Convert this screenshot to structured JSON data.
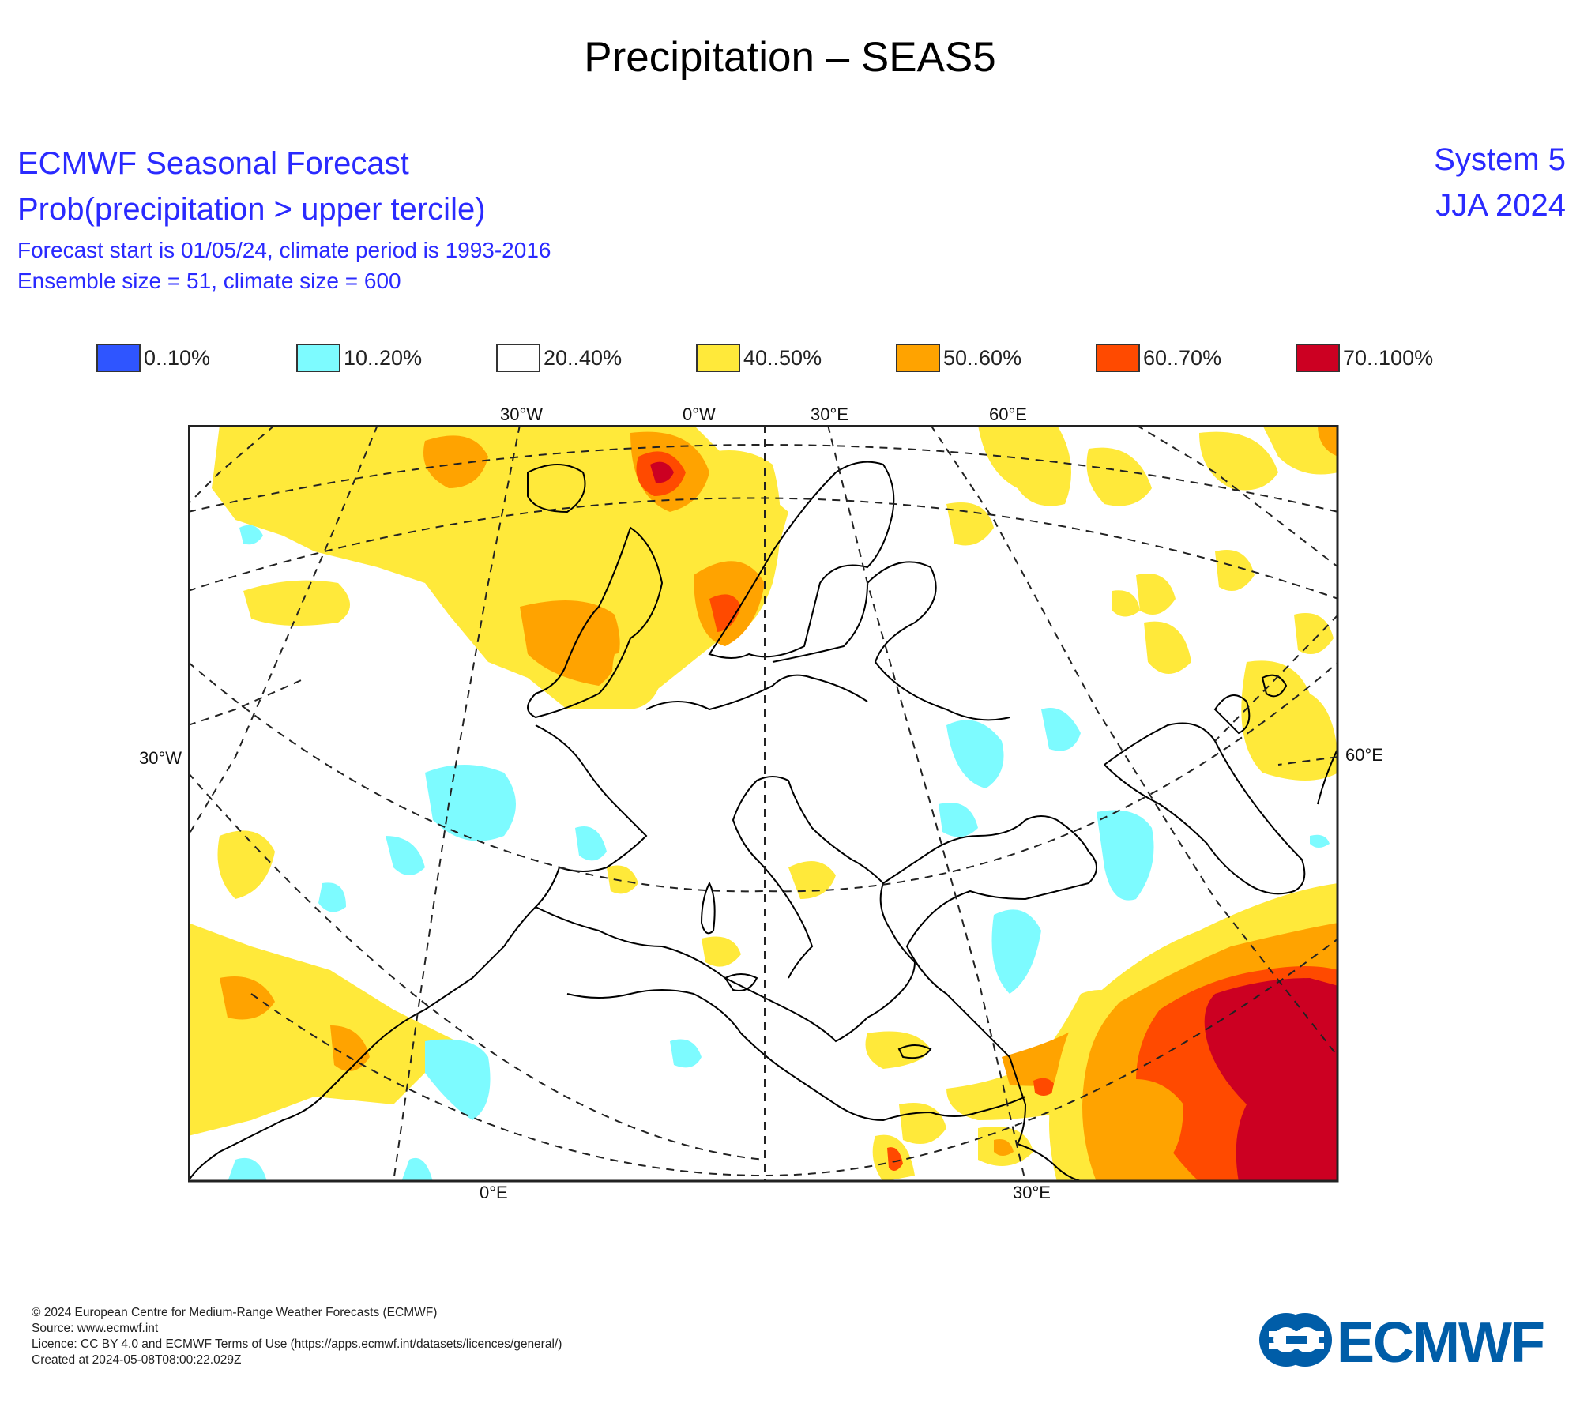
{
  "title": "Precipitation – SEAS5",
  "header": {
    "line1": "ECMWF Seasonal Forecast",
    "line2": "Prob(precipitation > upper tercile)",
    "line3": "Forecast start is 01/05/24, climate period is 1993-2016",
    "line4": "Ensemble size = 51, climate size = 600",
    "system": "System 5",
    "period": "JJA 2024"
  },
  "legend": [
    {
      "label": "0..10%",
      "color": "#2f55ff"
    },
    {
      "label": "10..20%",
      "color": "#7dfbff"
    },
    {
      "label": "20..40%",
      "color": "#ffffff"
    },
    {
      "label": "40..50%",
      "color": "#ffe93a"
    },
    {
      "label": "50..60%",
      "color": "#ffa300"
    },
    {
      "label": "60..70%",
      "color": "#ff4a00"
    },
    {
      "label": "70..100%",
      "color": "#cc0022"
    }
  ],
  "map": {
    "top_ticks": [
      "30°W",
      "0°W",
      "30°E",
      "60°E"
    ],
    "bottom_ticks": [
      "0°E",
      "30°E"
    ],
    "left_tick": "30°W",
    "right_tick": "60°E"
  },
  "footer": {
    "copyright": "© 2024 European Centre for Medium-Range Weather Forecasts (ECMWF)",
    "source": "Source: www.ecmwf.int",
    "licence": "Licence: CC BY 4.0 and ECMWF Terms of Use (https://apps.ecmwf.int/datasets/licences/general/)",
    "created": "Created at 2024-05-08T08:00:22.029Z"
  },
  "logo_text": "ECMWF",
  "colors": {
    "header_text": "#2a2aff",
    "logo": "#005da8"
  }
}
